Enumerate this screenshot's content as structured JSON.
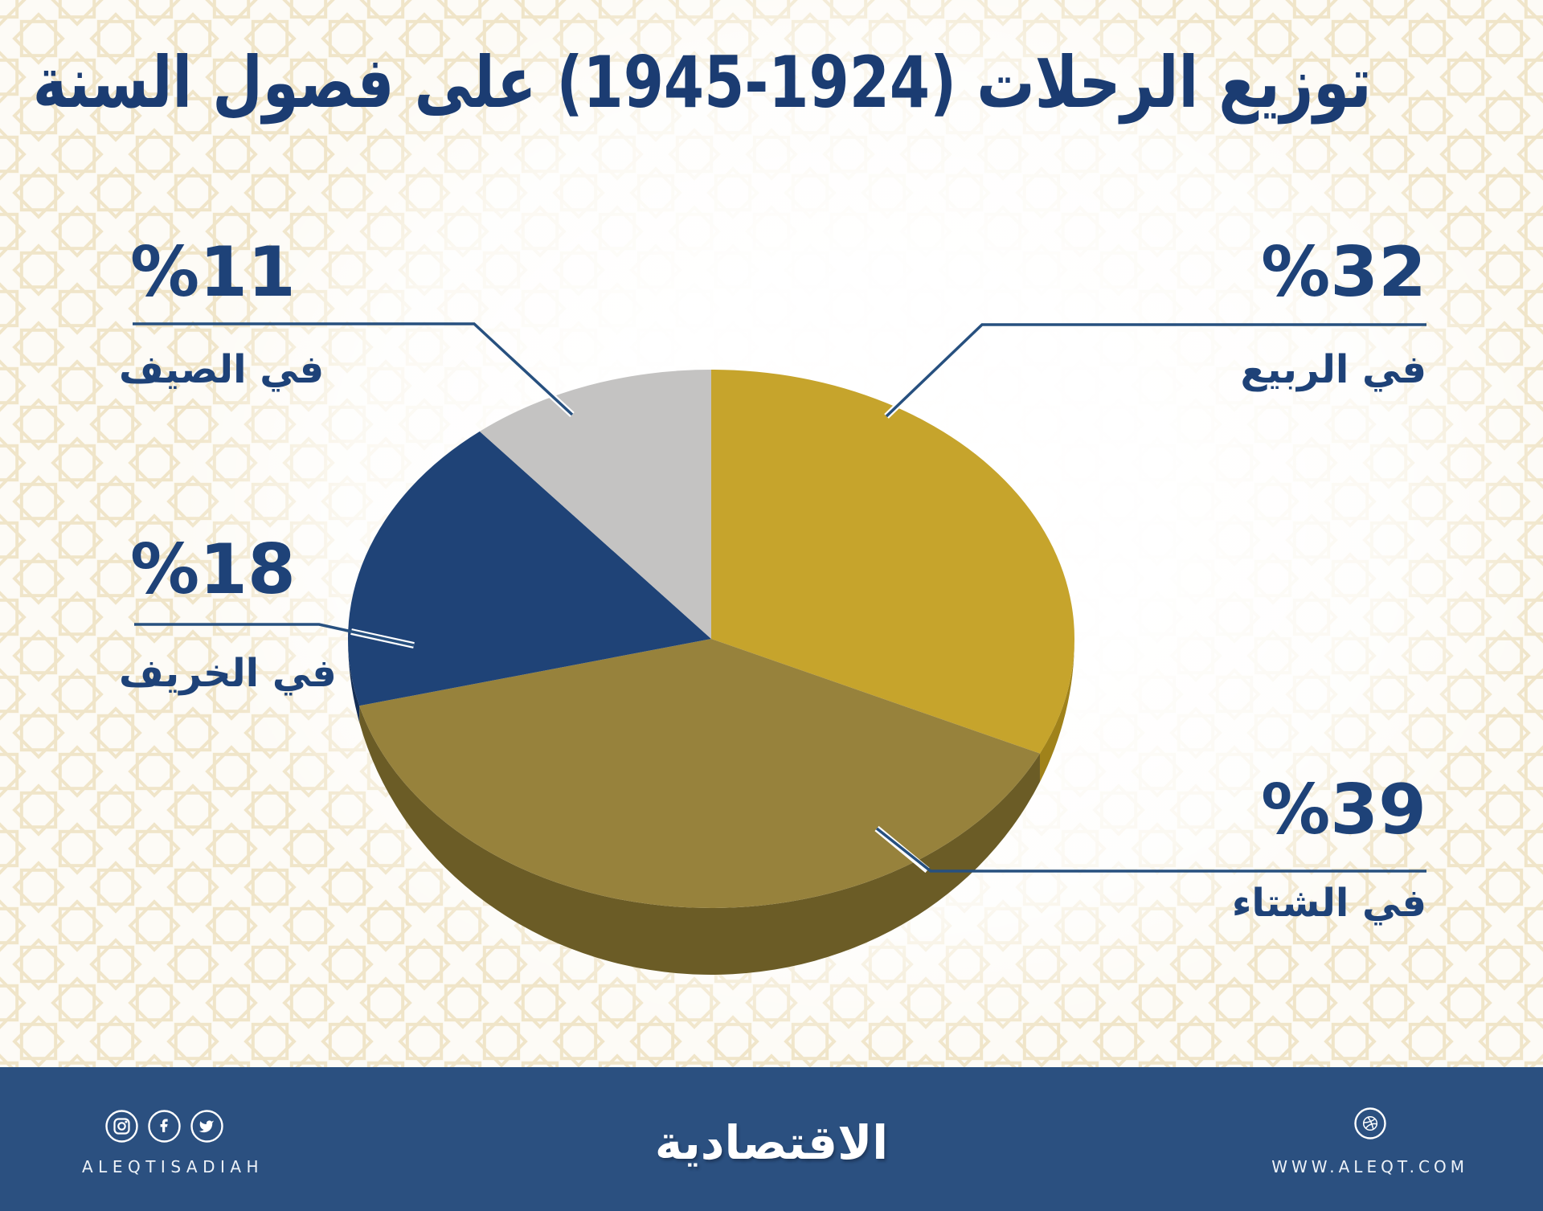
{
  "title": "توزيع الرحلات (1924-1945) على فصول السنة",
  "chart_data": {
    "type": "pie",
    "style": "3d",
    "title": "توزيع الرحلات (1924-1945) على فصول السنة",
    "unit": "percent",
    "start_angle_deg": 0,
    "direction": "clockwise",
    "slices": [
      {
        "key": "spring",
        "label": "في الربيع",
        "value": 32,
        "display": "%32",
        "color": "#C6A42C",
        "side_color": "#A0821A"
      },
      {
        "key": "winter",
        "label": "في الشتاء",
        "value": 39,
        "display": "%39",
        "color": "#97823C",
        "side_color": "#6B5C26"
      },
      {
        "key": "autumn",
        "label": "في الخريف",
        "value": 18,
        "display": "%18",
        "color": "#1F4377",
        "side_color": "#142E55"
      },
      {
        "key": "summer",
        "label": "في الصيف",
        "value": 11,
        "display": "%11",
        "color": "#C4C3C2",
        "side_color": "#9E9D9C"
      }
    ]
  },
  "footer": {
    "brand": "الاقتصادية",
    "handle": "ALEQTISADIAH",
    "website": "WWW.ALEQT.COM",
    "icons": [
      "instagram",
      "facebook",
      "twitter",
      "dribbble"
    ],
    "bg_color": "#2B5080"
  },
  "colors": {
    "text_navy": "#1E4278",
    "callout_line": "#27507F",
    "pattern_line": "#F0E5C9",
    "background": "#FDFBF6"
  }
}
